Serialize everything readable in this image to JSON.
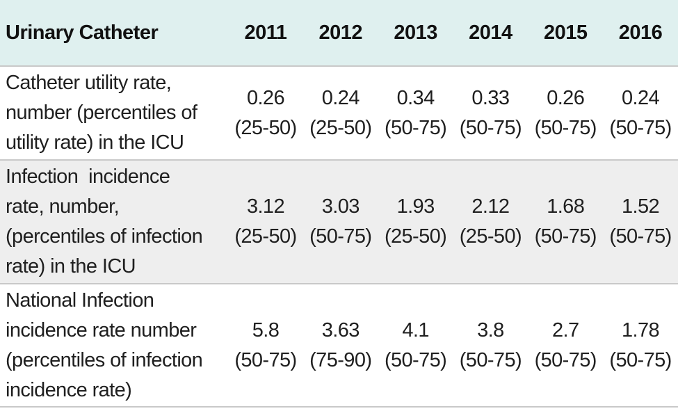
{
  "table": {
    "header": {
      "label": "Urinary Catheter",
      "years": [
        "2011",
        "2012",
        "2013",
        "2014",
        "2015",
        "2016"
      ]
    },
    "rows": [
      {
        "label_lines": [
          "Catheter utility rate,",
          "number (percentiles of",
          "utility rate) in the ICU"
        ],
        "cells": [
          {
            "value": "0.26",
            "range": "(25-50)"
          },
          {
            "value": "0.24",
            "range": "(25-50)"
          },
          {
            "value": "0.34",
            "range": "(50-75)"
          },
          {
            "value": "0.33",
            "range": "(50-75)"
          },
          {
            "value": "0.26",
            "range": "(50-75)"
          },
          {
            "value": "0.24",
            "range": "(50-75)"
          }
        ]
      },
      {
        "label_lines": [
          "Infection  incidence",
          "rate, number,",
          "(percentiles of infection",
          "rate) in the ICU"
        ],
        "cells": [
          {
            "value": "3.12",
            "range": "(25-50)"
          },
          {
            "value": "3.03",
            "range": "(50-75)"
          },
          {
            "value": "1.93",
            "range": "(25-50)"
          },
          {
            "value": "2.12",
            "range": "(25-50)"
          },
          {
            "value": "1.68",
            "range": "(50-75)"
          },
          {
            "value": "1.52",
            "range": "(50-75)"
          }
        ]
      },
      {
        "label_lines": [
          "National Infection",
          "incidence rate number",
          "(percentiles of infection",
          "incidence rate)"
        ],
        "cells": [
          {
            "value": "5.8",
            "range": "(50-75)"
          },
          {
            "value": "3.63",
            "range": "(75-90)"
          },
          {
            "value": "4.1",
            "range": "(50-75)"
          },
          {
            "value": "3.8",
            "range": "(50-75)"
          },
          {
            "value": "2.7",
            "range": "(50-75)"
          },
          {
            "value": "1.78",
            "range": "(50-75)"
          }
        ]
      }
    ]
  }
}
